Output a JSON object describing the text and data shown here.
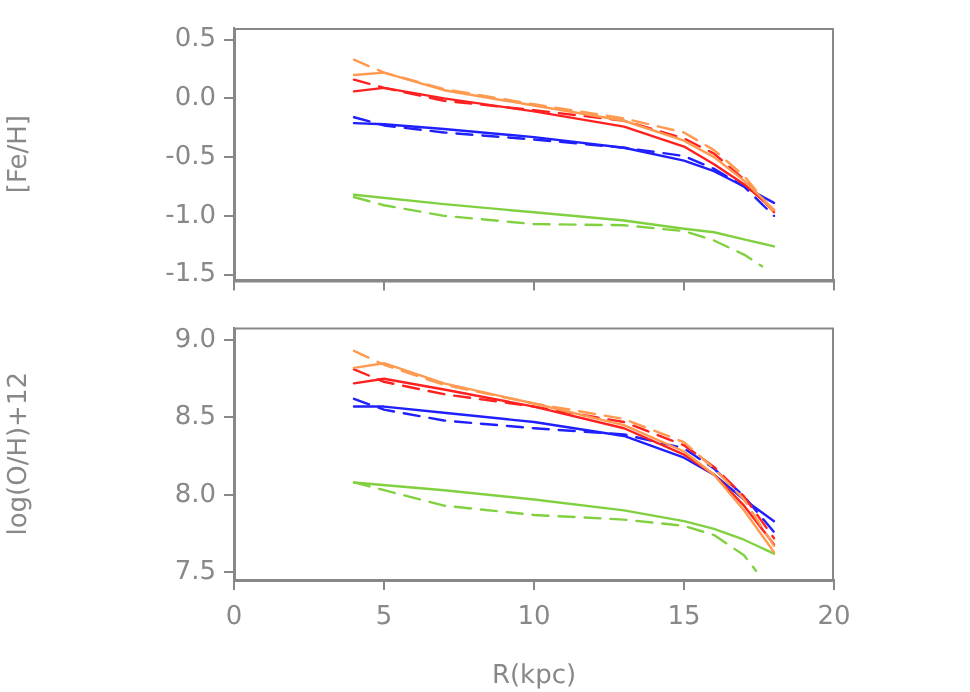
{
  "chart_data": [
    {
      "type": "line",
      "ylabel": "[Fe/H]",
      "xlim": [
        0,
        20
      ],
      "xticks": [
        0,
        5,
        10,
        15,
        20
      ],
      "ylim": [
        -1.55,
        0.6
      ],
      "yticks": [
        -1.5,
        {
          "value": -1,
          "label": "-1.0"
        },
        -0.5,
        {
          "value": 0,
          "label": "0.0"
        },
        0.5
      ],
      "tick_labels": "y",
      "grid": false,
      "legend": false,
      "marker": "none",
      "series": [
        {
          "color": "#ff9a50",
          "line_style": "solid",
          "x": [
            4,
            5,
            7,
            10,
            13,
            15,
            16,
            17,
            18
          ],
          "values": [
            0.2,
            0.22,
            0.07,
            -0.06,
            -0.19,
            -0.36,
            -0.5,
            -0.7,
            -0.95
          ]
        },
        {
          "color": "#ff9a50",
          "line_style": "dashed",
          "x": [
            4,
            5,
            7,
            10,
            13,
            15,
            16,
            17,
            18
          ],
          "values": [
            0.33,
            0.22,
            0.08,
            -0.05,
            -0.17,
            -0.29,
            -0.44,
            -0.66,
            -0.97
          ]
        },
        {
          "color": "#ff2020",
          "line_style": "solid",
          "x": [
            4,
            5,
            7,
            10,
            13,
            15,
            16,
            17,
            18
          ],
          "values": [
            0.06,
            0.09,
            0.0,
            -0.11,
            -0.24,
            -0.41,
            -0.56,
            -0.73,
            -0.95
          ]
        },
        {
          "color": "#ff2020",
          "line_style": "dashed",
          "x": [
            4,
            5,
            7,
            10,
            13,
            15,
            16,
            17,
            18
          ],
          "values": [
            0.16,
            0.09,
            -0.02,
            -0.1,
            -0.19,
            -0.34,
            -0.47,
            -0.69,
            -0.97
          ]
        },
        {
          "color": "#2020ff",
          "line_style": "solid",
          "x": [
            4,
            5,
            7,
            10,
            13,
            15,
            16,
            17,
            18
          ],
          "values": [
            -0.21,
            -0.22,
            -0.26,
            -0.33,
            -0.42,
            -0.53,
            -0.62,
            -0.75,
            -0.89
          ]
        },
        {
          "color": "#2020ff",
          "line_style": "dashed",
          "x": [
            4,
            5,
            7,
            10,
            13,
            15,
            16,
            17,
            18
          ],
          "values": [
            -0.16,
            -0.23,
            -0.29,
            -0.35,
            -0.42,
            -0.49,
            -0.6,
            -0.75,
            -1.0
          ]
        },
        {
          "color": "#80d040",
          "line_style": "solid",
          "x": [
            4,
            7,
            10,
            13,
            15,
            16,
            17,
            18
          ],
          "values": [
            -0.82,
            -0.9,
            -0.97,
            -1.04,
            -1.11,
            -1.14,
            -1.2,
            -1.26
          ]
        },
        {
          "color": "#80d040",
          "line_style": "dashed",
          "x": [
            4,
            5,
            7,
            10,
            13,
            15,
            16,
            17,
            17.6
          ],
          "values": [
            -0.84,
            -0.91,
            -1.0,
            -1.07,
            -1.08,
            -1.13,
            -1.21,
            -1.33,
            -1.43
          ]
        }
      ]
    },
    {
      "type": "line",
      "xlabel": "R(kpc)",
      "ylabel": "log(O/H)+12",
      "xlim": [
        0,
        20
      ],
      "xticks": [
        0,
        5,
        10,
        15,
        20
      ],
      "ylim": [
        7.45,
        9.08
      ],
      "yticks": [
        7.5,
        {
          "value": 8,
          "label": "8.0"
        },
        8.5,
        {
          "value": 9,
          "label": "9.0"
        }
      ],
      "grid": false,
      "legend": false,
      "marker": "none",
      "series": [
        {
          "color": "#ff9a50",
          "line_style": "solid",
          "x": [
            4,
            5,
            7,
            10,
            13,
            15,
            16,
            17,
            18
          ],
          "values": [
            8.82,
            8.85,
            8.72,
            8.59,
            8.45,
            8.28,
            8.13,
            7.9,
            7.63
          ]
        },
        {
          "color": "#ff9a50",
          "line_style": "dashed",
          "x": [
            4,
            5,
            7,
            10,
            13,
            15,
            16,
            17,
            18
          ],
          "values": [
            8.93,
            8.84,
            8.71,
            8.59,
            8.49,
            8.34,
            8.17,
            7.97,
            7.67
          ]
        },
        {
          "color": "#ff2020",
          "line_style": "solid",
          "x": [
            4,
            5,
            7,
            10,
            13,
            15,
            16,
            17,
            18
          ],
          "values": [
            8.72,
            8.75,
            8.68,
            8.57,
            8.43,
            8.26,
            8.13,
            7.93,
            7.68
          ]
        },
        {
          "color": "#ff2020",
          "line_style": "dashed",
          "x": [
            4,
            5,
            7,
            10,
            13,
            15,
            16,
            17,
            18
          ],
          "values": [
            8.81,
            8.73,
            8.65,
            8.57,
            8.47,
            8.32,
            8.18,
            7.99,
            7.72
          ]
        },
        {
          "color": "#2020ff",
          "line_style": "solid",
          "x": [
            4,
            5,
            7,
            10,
            13,
            15,
            16,
            17,
            18
          ],
          "values": [
            8.57,
            8.57,
            8.53,
            8.47,
            8.38,
            8.24,
            8.13,
            7.97,
            7.83
          ]
        },
        {
          "color": "#2020ff",
          "line_style": "dashed",
          "x": [
            4,
            5,
            7,
            10,
            13,
            15,
            16,
            17,
            18
          ],
          "values": [
            8.62,
            8.55,
            8.48,
            8.43,
            8.39,
            8.3,
            8.17,
            7.99,
            7.76
          ]
        },
        {
          "color": "#80d040",
          "line_style": "solid",
          "x": [
            4,
            7,
            10,
            13,
            15,
            16,
            17,
            18
          ],
          "values": [
            8.08,
            8.03,
            7.97,
            7.9,
            7.83,
            7.78,
            7.71,
            7.62
          ]
        },
        {
          "color": "#80d040",
          "line_style": "dashed",
          "x": [
            4,
            5,
            7,
            10,
            13,
            15,
            16,
            17,
            17.4
          ],
          "values": [
            8.08,
            8.03,
            7.93,
            7.87,
            7.84,
            7.8,
            7.74,
            7.61,
            7.51
          ]
        }
      ]
    }
  ]
}
